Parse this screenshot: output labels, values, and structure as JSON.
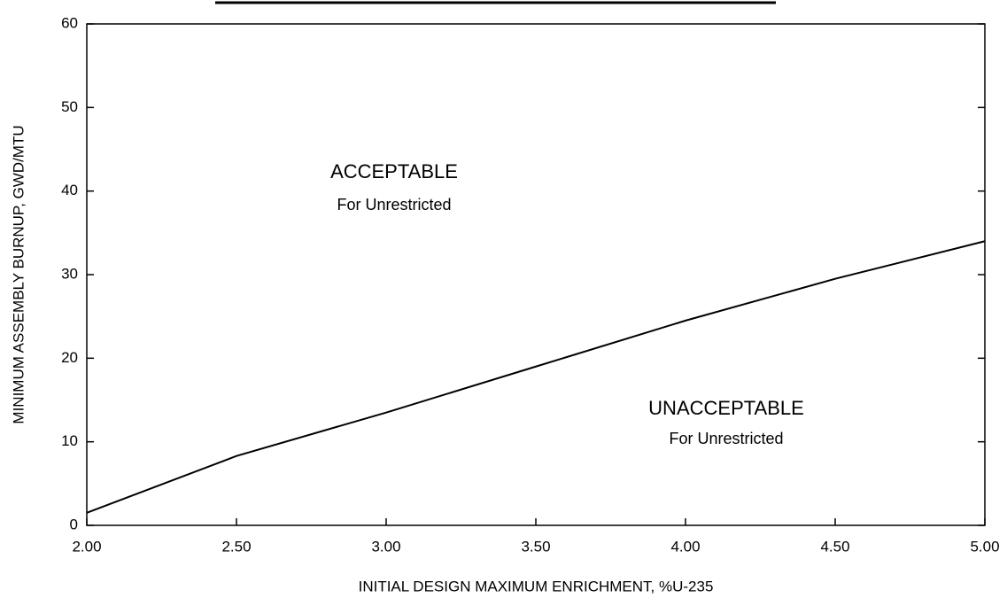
{
  "chart_data": {
    "type": "line",
    "x_label": "INITIAL DESIGN MAXIMUM ENRICHMENT, %U-235",
    "y_label": "MINIMUM ASSEMBLY BURNUP, GWD/MTU",
    "x": [
      2.0,
      2.5,
      3.0,
      3.5,
      4.0,
      4.5,
      5.0
    ],
    "values": [
      1.5,
      8.3,
      13.5,
      19,
      24.5,
      29.5,
      34
    ],
    "color": "#000000",
    "xlim": [
      2,
      5
    ],
    "xticks": [
      {
        "value": 2,
        "label": "2.00"
      },
      {
        "value": 2.5,
        "label": "2.50"
      },
      {
        "value": 3,
        "label": "3.00"
      },
      {
        "value": 3.5,
        "label": "3.50"
      },
      {
        "value": 4,
        "label": "4.00"
      },
      {
        "value": 4.5,
        "label": "4.50"
      },
      {
        "value": 5,
        "label": "5.00"
      }
    ],
    "ylim": [
      0,
      60
    ],
    "yticks": [
      0,
      10,
      20,
      30,
      40,
      50,
      60
    ],
    "annotations": [
      {
        "title": "ACCEPTABLE",
        "subtitle": "For Unrestricted"
      },
      {
        "title": "UNACCEPTABLE",
        "subtitle": "For Unrestricted"
      }
    ]
  }
}
